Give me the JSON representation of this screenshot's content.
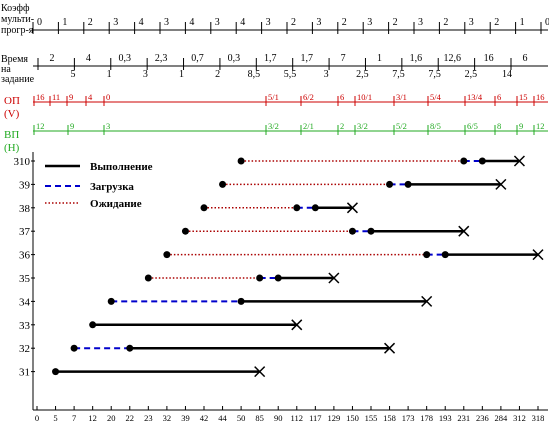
{
  "row_labels": {
    "coef": [
      "Коэфф",
      "мульти-",
      "прогр-я"
    ],
    "time": [
      "Время",
      "на",
      "задание"
    ],
    "op": [
      "ОП",
      "(V)"
    ],
    "vp": [
      "ВП",
      "(H)"
    ]
  },
  "coef_values": [
    "0",
    "1",
    "2",
    "3",
    "4",
    "3",
    "4",
    "3",
    "4",
    "3",
    "2",
    "3",
    "2",
    "3",
    "2",
    "3",
    "2",
    "3",
    "2",
    "1",
    "0"
  ],
  "time_upper": [
    "2",
    "4",
    "0,3",
    "2,3",
    "0,7",
    "0,3",
    "1,7",
    "1,7",
    "7",
    "1",
    "1,6",
    "12,6",
    "16",
    "6"
  ],
  "time_lower": [
    "5",
    "1",
    "3",
    "1",
    "2",
    "8,5",
    "5,5",
    "3",
    "2,5",
    "7,5",
    "7,5",
    "2,5",
    "14"
  ],
  "op_values": [
    "16",
    "11",
    "9",
    "4",
    "0",
    "5/1",
    "6/2",
    "6",
    "10/1",
    "3/1",
    "5/4",
    "13/4",
    "6",
    "15",
    "16"
  ],
  "vp_values": [
    "12",
    "9",
    "3",
    "3/2",
    "2/1",
    "2",
    "3/2",
    "5/2",
    "8/5",
    "6/5",
    "8",
    "9",
    "12"
  ],
  "legend": {
    "exec": "Выполнение",
    "load": "Загрузка",
    "wait": "Ожидание"
  },
  "colors": {
    "exec": "#000000",
    "load": "#0000cc",
    "wait": "#aa0000",
    "op": "#cc0000",
    "vp": "#22aa22"
  },
  "chart_data": {
    "type": "gantt",
    "x_ticks": [
      0,
      5,
      7,
      12,
      20,
      22,
      23,
      32,
      39,
      42,
      44,
      50,
      85,
      90,
      112,
      117,
      129,
      150,
      155,
      158,
      173,
      178,
      193,
      231,
      236,
      284,
      312,
      318
    ],
    "y_labels": [
      "310",
      "39",
      "38",
      "37",
      "36",
      "35",
      "34",
      "33",
      "32",
      "31"
    ],
    "tasks": [
      {
        "name": "310",
        "start": 50,
        "load_start": 231,
        "exec_start": 236,
        "end": 312
      },
      {
        "name": "39",
        "start": 44,
        "load_start": 158,
        "exec_start": 173,
        "end": 284
      },
      {
        "name": "38",
        "start": 42,
        "load_start": 112,
        "exec_start": 117,
        "end": 150
      },
      {
        "name": "37",
        "start": 39,
        "load_start": 150,
        "exec_start": 155,
        "end": 231
      },
      {
        "name": "36",
        "start": 32,
        "load_start": 178,
        "exec_start": 193,
        "end": 318
      },
      {
        "name": "35",
        "start": 23,
        "load_start": 85,
        "exec_start": 90,
        "end": 129
      },
      {
        "name": "34",
        "start": 20,
        "load_start": 20,
        "exec_start": 50,
        "end": 178
      },
      {
        "name": "33",
        "start": 12,
        "load_start": 12,
        "exec_start": 12,
        "end": 112
      },
      {
        "name": "32",
        "start": 7,
        "load_start": 7,
        "exec_start": 22,
        "end": 158
      },
      {
        "name": "31",
        "start": 5,
        "load_start": 5,
        "exec_start": 5,
        "end": 85
      }
    ]
  }
}
